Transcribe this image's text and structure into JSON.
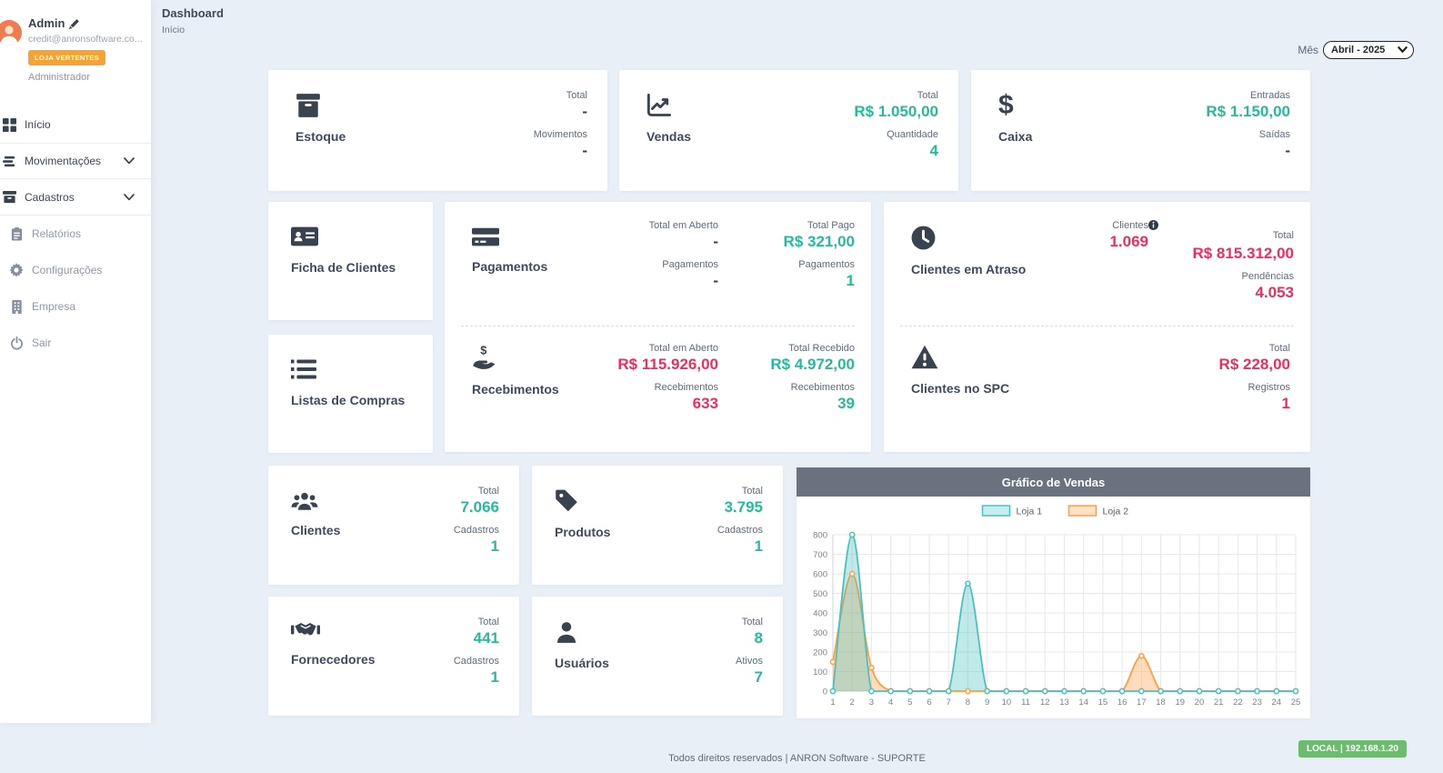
{
  "colors": {
    "green": "#26b99a",
    "red": "#ed2d5c",
    "badge_orange": "#f5a333",
    "env_green": "#6cbb6f",
    "chart_header_gray": "#6a7280",
    "loja1": "#4bc0c0",
    "loja2": "#ff9f40"
  },
  "profile": {
    "name": "Admin",
    "email": "credit@anronsoftware.co...",
    "badge": "LOJA VERTENTES",
    "role": "Administrador"
  },
  "sidebar": {
    "items": [
      {
        "label": "Início"
      },
      {
        "label": "Movimentações"
      },
      {
        "label": "Cadastros"
      },
      {
        "label": "Relatórios"
      },
      {
        "label": "Configurações"
      },
      {
        "label": "Empresa"
      },
      {
        "label": "Sair"
      }
    ]
  },
  "header": {
    "title": "Dashboard",
    "breadcrumb": "Início",
    "month_label": "Mês",
    "month_value": "Abril - 2025"
  },
  "cards": {
    "estoque": {
      "title": "Estoque",
      "stats": [
        {
          "label": "Total",
          "value": "-"
        },
        {
          "label": "Movimentos",
          "value": "-"
        }
      ]
    },
    "vendas": {
      "title": "Vendas",
      "stats": [
        {
          "label": "Total",
          "value": "R$ 1.050,00"
        },
        {
          "label": "Quantidade",
          "value": "4"
        }
      ]
    },
    "caixa": {
      "title": "Caixa",
      "stats": [
        {
          "label": "Entradas",
          "value": "R$ 1.150,00"
        },
        {
          "label": "Saídas",
          "value": "-"
        }
      ]
    },
    "ficha_clientes": {
      "title": "Ficha de Clientes"
    },
    "listas_compras": {
      "title": "Listas de Compras"
    },
    "pagamentos": {
      "title": "Pagamentos",
      "col1": [
        {
          "label": "Total em Aberto",
          "value": "-"
        },
        {
          "label": "Pagamentos",
          "value": "-"
        }
      ],
      "col2": [
        {
          "label": "Total Pago",
          "value": "R$ 321,00"
        },
        {
          "label": "Pagamentos",
          "value": "1"
        }
      ]
    },
    "recebimentos": {
      "title": "Recebimentos",
      "col1": [
        {
          "label": "Total em Aberto",
          "value": "R$ 115.926,00"
        },
        {
          "label": "Recebimentos",
          "value": "633"
        }
      ],
      "col2": [
        {
          "label": "Total Recebido",
          "value": "R$ 4.972,00"
        },
        {
          "label": "Recebimentos",
          "value": "39"
        }
      ]
    },
    "clientes_atraso": {
      "title": "Clientes em Atraso",
      "col1": [
        {
          "label": "Clientes",
          "value": "1.069"
        }
      ],
      "col2": [
        {
          "label": "Total",
          "value": "R$ 815.312,00"
        },
        {
          "label": "Pendências",
          "value": "4.053"
        }
      ]
    },
    "clientes_spc": {
      "title": "Clientes no SPC",
      "stats": [
        {
          "label": "Total",
          "value": "R$ 228,00"
        },
        {
          "label": "Registros",
          "value": "1"
        }
      ]
    },
    "clientes": {
      "title": "Clientes",
      "stats": [
        {
          "label": "Total",
          "value": "7.066"
        },
        {
          "label": "Cadastros",
          "value": "1"
        }
      ]
    },
    "produtos": {
      "title": "Produtos",
      "stats": [
        {
          "label": "Total",
          "value": "3.795"
        },
        {
          "label": "Cadastros",
          "value": "1"
        }
      ]
    },
    "fornecedores": {
      "title": "Fornecedores",
      "stats": [
        {
          "label": "Total",
          "value": "441"
        },
        {
          "label": "Cadastros",
          "value": "1"
        }
      ]
    },
    "usuarios": {
      "title": "Usuários",
      "stats": [
        {
          "label": "Total",
          "value": "8"
        },
        {
          "label": "Ativos",
          "value": "7"
        }
      ]
    }
  },
  "chart_data": {
    "type": "area",
    "title": "Gráfico de Vendas",
    "x": [
      1,
      2,
      3,
      4,
      5,
      6,
      7,
      8,
      9,
      10,
      11,
      12,
      13,
      14,
      15,
      16,
      17,
      18,
      19,
      20,
      21,
      22,
      23,
      24,
      25
    ],
    "series": [
      {
        "name": "Loja 1",
        "color": "#4bc0c0",
        "values": [
          0,
          800,
          0,
          0,
          0,
          0,
          0,
          550,
          0,
          0,
          0,
          0,
          0,
          0,
          0,
          0,
          0,
          0,
          0,
          0,
          0,
          0,
          0,
          0,
          0
        ]
      },
      {
        "name": "Loja 2",
        "color": "#ff9f40",
        "values": [
          150,
          600,
          120,
          0,
          0,
          0,
          0,
          0,
          0,
          0,
          0,
          0,
          0,
          0,
          0,
          0,
          180,
          0,
          0,
          0,
          0,
          0,
          0,
          0,
          0
        ]
      }
    ],
    "ylim": [
      0,
      800
    ],
    "yticks": [
      0,
      100,
      200,
      300,
      400,
      500,
      600,
      700,
      800
    ],
    "legend_position": "top",
    "grid": true
  },
  "footer": {
    "copyright": "Todos direitos reservados | ANRON Software - SUPORTE",
    "env_badge": "LOCAL | 192.168.1.20"
  }
}
